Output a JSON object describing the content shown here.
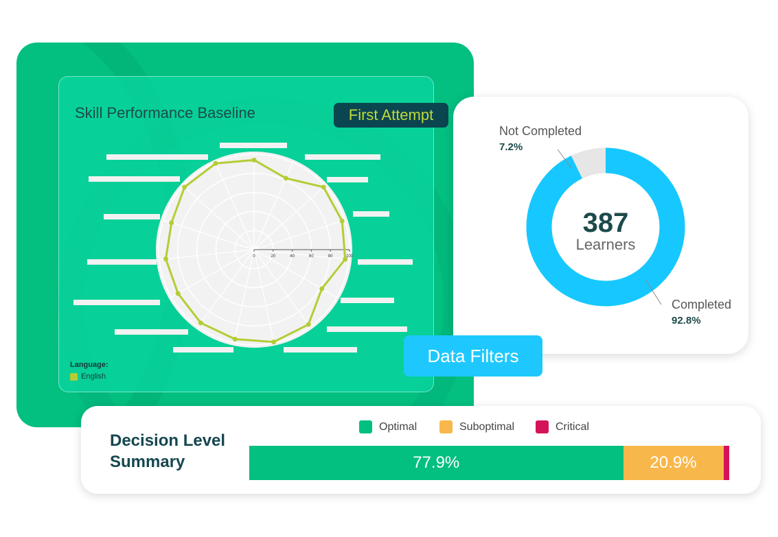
{
  "radar": {
    "title": "Skill Performance Baseline",
    "badge": "First Attempt",
    "ticks": [
      "0",
      "20",
      "40",
      "60",
      "80",
      "100"
    ],
    "values": [
      94,
      82,
      98,
      97,
      96,
      82,
      97,
      99,
      96,
      95,
      92,
      93,
      91,
      98,
      99
    ],
    "range": [
      0,
      100
    ],
    "series_color": "#b4cc35",
    "legend_title": "Language:",
    "legend_item": "English"
  },
  "donut": {
    "total": "387",
    "total_label": "Learners",
    "not_completed_label": "Not Completed",
    "not_completed_value": "7.2%",
    "completed_label": "Completed",
    "completed_value": "92.8%",
    "completed_pct": 92.8,
    "colors": {
      "completed": "#16c8ff",
      "not_completed": "#e6e6e6"
    }
  },
  "filters_button": "Data Filters",
  "summary": {
    "title": "Decision Level Summary",
    "legend": [
      "Optimal",
      "Suboptimal",
      "Critical"
    ],
    "segments": [
      {
        "label": "77.9%",
        "value": 77.9,
        "color": "#03bf80"
      },
      {
        "label": "20.9%",
        "value": 20.9,
        "color": "#f8b74a"
      },
      {
        "label": "",
        "value": 1.2,
        "color": "#d4145a"
      }
    ]
  }
}
